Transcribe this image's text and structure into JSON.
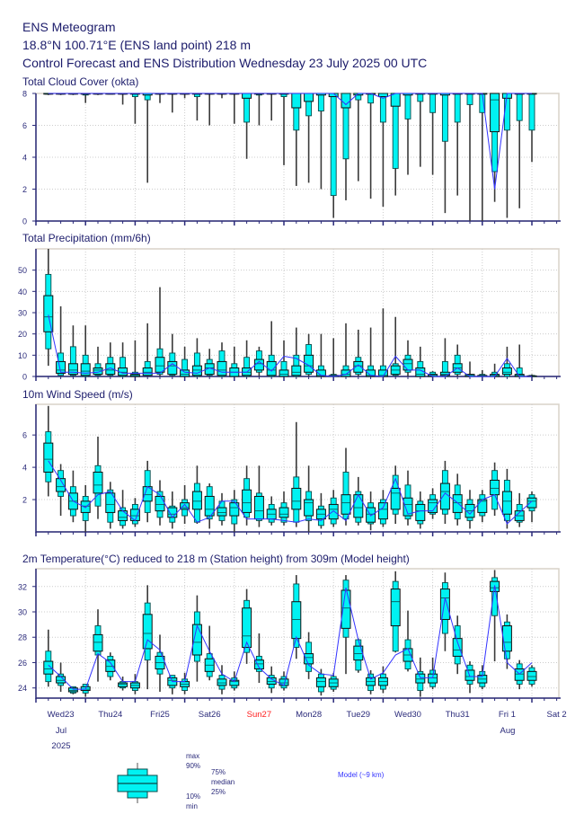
{
  "header": {
    "title": "ENS Meteogram",
    "location": "18.8°N 100.71°E (ENS land point) 218 m",
    "subtitle": "Control Forecast and ENS Distribution Wednesday 23 July 2025 00 UTC"
  },
  "colors": {
    "box_fill": "#00f2f2",
    "box_stroke": "#0a4a4a",
    "whisker": "#3a3a3a",
    "control": "#3333ff",
    "axis": "#2a2a7a",
    "grid": "#cccccc",
    "sunday": "#ff2020"
  },
  "x_axis": {
    "step_hours": 6,
    "first_step": "Wed23 06 UTC",
    "days": [
      {
        "label": "Wed23",
        "sunday": false
      },
      {
        "label": "Thu24",
        "sunday": false
      },
      {
        "label": "Fri25",
        "sunday": false
      },
      {
        "label": "Sat26",
        "sunday": false
      },
      {
        "label": "Sun27",
        "sunday": true
      },
      {
        "label": "Mon28",
        "sunday": false
      },
      {
        "label": "Tue29",
        "sunday": false
      },
      {
        "label": "Wed30",
        "sunday": false
      },
      {
        "label": "Thu31",
        "sunday": false
      },
      {
        "label": "Fri 1",
        "sunday": false
      },
      {
        "label": "Sat 2",
        "sunday": false
      }
    ],
    "month_jul": "Jul",
    "month_aug": "Aug",
    "year": "2025"
  },
  "legend": {
    "max": "max",
    "p90": "90%",
    "p75": "75%",
    "median": "median",
    "p25": "25%",
    "p10": "10%",
    "min": "min",
    "model": "Model (~9 km)"
  },
  "chart_data": [
    {
      "type": "boxplot",
      "title": "Total Cloud Cover (okta)",
      "ylim": [
        0,
        8
      ],
      "yticks": [
        "0",
        "2",
        "4",
        "6",
        "8"
      ],
      "min": [
        7.9,
        7.9,
        7.9,
        7.4,
        7.9,
        8,
        7.3,
        6.1,
        2.4,
        7.4,
        6.8,
        7.7,
        6.3,
        6.0,
        7.7,
        6.1,
        3.9,
        6.0,
        6.3,
        3.5,
        2.2,
        2.4,
        2.0,
        0.2,
        1.3,
        2.5,
        1.4,
        0.9,
        1.6,
        2.9,
        3.4,
        2.9,
        0.5,
        1.6,
        0,
        0,
        1.2,
        0.2,
        0.8,
        3.7
      ],
      "p10": [
        8,
        8,
        8,
        7.9,
        8,
        8,
        8,
        7.8,
        7.6,
        8,
        8,
        8,
        7.8,
        8,
        8,
        8,
        6.2,
        7.9,
        8,
        7.8,
        5.7,
        6.6,
        6.9,
        1.6,
        3.9,
        7.6,
        7.4,
        6.2,
        3.3,
        6.4,
        7.5,
        6.8,
        5.0,
        6.2,
        7.3,
        6.8,
        3.1,
        5.7,
        6.3,
        5.7
      ],
      "p25": [
        8,
        8,
        8,
        8,
        8,
        8,
        8,
        8,
        7.9,
        8,
        8,
        8,
        8,
        8,
        8,
        8,
        7.7,
        8,
        8,
        8,
        7.1,
        7.5,
        7.9,
        7.8,
        7.1,
        7.9,
        8,
        7.8,
        7.2,
        7.9,
        8,
        8,
        7.9,
        8,
        8,
        8,
        5.6,
        7.7,
        8,
        8
      ],
      "median": [
        8,
        8,
        8,
        8,
        8,
        8,
        8,
        8,
        8,
        8,
        8,
        8,
        8,
        8,
        8,
        8,
        8,
        8,
        8,
        8,
        8,
        8,
        8,
        8,
        8,
        8,
        8,
        8,
        8,
        8,
        8,
        8,
        8,
        8,
        8,
        8,
        7.6,
        8,
        8,
        8
      ],
      "p75": [
        8,
        8,
        8,
        8,
        8,
        8,
        8,
        8,
        8,
        8,
        8,
        8,
        8,
        8,
        8,
        8,
        8,
        8,
        8,
        8,
        8,
        8,
        8,
        8,
        8,
        8,
        8,
        8,
        8,
        8,
        8,
        8,
        8,
        8,
        8,
        8,
        8,
        8,
        8,
        8
      ],
      "p90": [
        8,
        8,
        8,
        8,
        8,
        8,
        8,
        8,
        8,
        8,
        8,
        8,
        8,
        8,
        8,
        8,
        8,
        8,
        8,
        8,
        8,
        8,
        8,
        8,
        8,
        8,
        8,
        8,
        8,
        8,
        8,
        8,
        8,
        8,
        8,
        8,
        8,
        8,
        8,
        8
      ],
      "max": [
        8,
        8,
        8,
        8,
        8,
        8,
        8,
        8,
        8,
        8,
        8,
        8,
        8,
        8,
        8,
        8,
        8,
        8,
        8,
        8,
        8,
        8,
        8,
        8,
        8,
        8,
        8,
        8,
        8,
        8,
        8,
        8,
        8,
        8,
        8,
        8,
        8,
        8,
        8,
        8
      ],
      "control": [
        8,
        8,
        8,
        8,
        8,
        8,
        8,
        8,
        8,
        8,
        8,
        8,
        8,
        8,
        8,
        8,
        8,
        8,
        8,
        8,
        8,
        8,
        8,
        8,
        7.3,
        8,
        8,
        7.7,
        8,
        8,
        8,
        8,
        8,
        8,
        8,
        8,
        2.0,
        8,
        8,
        8
      ]
    },
    {
      "type": "boxplot",
      "title": "Total Precipitation (mm/6h)",
      "ylim": [
        0,
        60
      ],
      "yticks": [
        "0",
        "10",
        "20",
        "30",
        "40",
        "50"
      ],
      "min": [
        5,
        0,
        0,
        0,
        0,
        0,
        0,
        0,
        0,
        0,
        0,
        0,
        0,
        0,
        0,
        0,
        0,
        0,
        0,
        0,
        0,
        0,
        0,
        0,
        0,
        0,
        0,
        0,
        0,
        0,
        0,
        0,
        0,
        0,
        0,
        0,
        0,
        0,
        0,
        0
      ],
      "p10": [
        13,
        0.5,
        0.5,
        0,
        0.5,
        0.5,
        0,
        0,
        0.5,
        1,
        0.5,
        0,
        0,
        0.5,
        0,
        0,
        0,
        2,
        0,
        0,
        0,
        1,
        0,
        0,
        0,
        1,
        0,
        0,
        0.5,
        2,
        0,
        0,
        0,
        1,
        0,
        0,
        0,
        0,
        0,
        0
      ],
      "p25": [
        21,
        1.5,
        1,
        0.5,
        1,
        1,
        0.5,
        0,
        0.5,
        2,
        1,
        0,
        0.5,
        1,
        0.5,
        0,
        0.5,
        3,
        0.5,
        0,
        0.5,
        2,
        0,
        0,
        0,
        2,
        0,
        0,
        1,
        3,
        0,
        0,
        0.5,
        2,
        0,
        0,
        0,
        1,
        0,
        0
      ],
      "median": [
        28,
        3,
        3,
        2.5,
        3,
        3,
        2,
        0.5,
        2,
        5,
        5,
        1,
        3,
        4,
        3,
        2,
        2,
        6,
        3,
        1,
        2,
        5,
        0.5,
        0,
        1,
        5,
        0.5,
        0.5,
        3,
        6,
        1,
        0.5,
        1,
        4,
        0.5,
        0,
        0.5,
        2,
        0.5,
        0
      ],
      "p75": [
        38,
        7,
        6,
        6,
        4,
        6,
        4,
        1,
        4,
        9,
        7,
        3,
        5,
        6,
        7,
        4,
        4,
        8,
        7,
        3,
        5,
        10,
        3,
        0.5,
        3,
        7,
        3,
        3,
        5,
        8,
        4,
        1,
        2,
        6,
        1,
        0.5,
        1,
        4,
        1,
        0.3
      ],
      "p90": [
        48,
        11,
        14,
        10,
        6,
        9,
        9,
        2,
        7,
        13,
        11,
        8,
        11,
        8,
        12,
        6,
        9,
        12,
        10,
        7,
        10,
        15,
        5,
        1,
        5,
        9,
        5,
        5,
        6,
        10,
        7,
        2,
        7,
        10,
        1,
        1,
        2,
        6,
        4,
        0.5
      ],
      "max": [
        60,
        33,
        24,
        24,
        14,
        16,
        16,
        17,
        25,
        42,
        20,
        14,
        18,
        13,
        16,
        14,
        17,
        14,
        26,
        17,
        23,
        20,
        20,
        18,
        25,
        22,
        23,
        32,
        28,
        17,
        14,
        2.5,
        18,
        15,
        7,
        3,
        6,
        14,
        15,
        1
      ],
      "control": [
        29,
        2,
        2,
        1.5,
        2,
        4,
        1.5,
        1.5,
        1.5,
        1.5,
        6,
        2,
        1.5,
        4,
        2,
        2,
        2,
        7,
        2.5,
        9.5,
        8.5,
        5.2,
        0.5,
        0,
        1,
        5.5,
        0.5,
        0,
        9.5,
        3,
        3,
        0,
        0,
        4,
        0,
        0,
        0,
        8.5,
        0,
        0
      ]
    },
    {
      "type": "boxplot",
      "title": "10m Wind Speed (m/s)",
      "ylim": [
        0,
        7.9
      ],
      "yticks": [
        "2",
        "4",
        "6"
      ],
      "min": [
        2.2,
        1.0,
        0.6,
        0.0,
        0.8,
        0.2,
        0.2,
        0.3,
        0.6,
        0.4,
        0.2,
        0.5,
        0.5,
        0.2,
        0.4,
        0.0,
        0.4,
        0.3,
        0.4,
        0.4,
        0.3,
        0.0,
        0.2,
        0.3,
        0.4,
        0.4,
        0.1,
        0.3,
        0.5,
        0.4,
        0.2,
        0.8,
        0.5,
        0.4,
        0.2,
        0.6,
        1.0,
        0.2,
        0.3,
        0.6
      ],
      "p10": [
        3.1,
        2.2,
        1.0,
        0.7,
        1.6,
        0.6,
        0.4,
        0.5,
        1.2,
        0.9,
        0.6,
        1.0,
        0.6,
        0.8,
        0.7,
        0.5,
        0.9,
        0.7,
        0.6,
        0.6,
        0.6,
        0.7,
        0.4,
        0.5,
        0.8,
        0.6,
        0.5,
        0.5,
        1.1,
        0.8,
        0.5,
        1.1,
        1.1,
        0.8,
        0.7,
        1.0,
        1.4,
        0.7,
        0.6,
        1.3
      ],
      "p25": [
        3.7,
        2.5,
        1.4,
        1.2,
        2.4,
        1.2,
        0.7,
        0.7,
        1.9,
        1.3,
        0.9,
        1.4,
        1.4,
        1.0,
        1.0,
        1.0,
        1.2,
        0.8,
        0.8,
        0.9,
        1.4,
        1.0,
        0.8,
        0.8,
        1.1,
        0.9,
        0.6,
        0.8,
        1.4,
        1.0,
        0.7,
        1.2,
        1.4,
        1.2,
        0.9,
        1.2,
        2.3,
        1.1,
        0.7,
        1.5
      ],
      "median": [
        4.5,
        2.8,
        1.9,
        1.6,
        2.9,
        1.7,
        0.9,
        1.0,
        2.3,
        1.7,
        1.1,
        1.5,
        1.9,
        1.4,
        1.2,
        1.5,
        1.8,
        1.3,
        1.1,
        1.1,
        1.9,
        1.8,
        1.1,
        1.4,
        1.8,
        1.5,
        1.1,
        1.4,
        2.4,
        1.7,
        1.3,
        1.8,
        2.5,
        1.8,
        1.3,
        1.9,
        2.7,
        1.9,
        1.0,
        1.9
      ],
      "p75": [
        5.5,
        3.3,
        2.4,
        1.9,
        3.7,
        2.4,
        1.3,
        1.4,
        2.8,
        2.2,
        1.5,
        1.8,
        2.5,
        2.2,
        1.5,
        1.8,
        2.6,
        2.2,
        1.4,
        1.5,
        2.7,
        2.0,
        1.4,
        1.7,
        2.3,
        2.3,
        1.5,
        1.8,
        2.7,
        2.1,
        1.7,
        2.0,
        3.0,
        2.3,
        1.7,
        2.0,
        3.2,
        2.5,
        1.3,
        2.1
      ],
      "p90": [
        6.2,
        3.8,
        2.8,
        2.2,
        4.1,
        2.6,
        1.5,
        1.7,
        3.8,
        2.5,
        1.6,
        2.0,
        3.0,
        2.8,
        1.9,
        2.0,
        3.3,
        2.4,
        1.7,
        1.8,
        3.4,
        2.5,
        1.6,
        2.1,
        3.7,
        2.5,
        1.8,
        2.0,
        3.5,
        2.9,
        1.9,
        2.3,
        3.8,
        2.9,
        2.0,
        2.3,
        3.8,
        3.2,
        1.7,
        2.3
      ],
      "max": [
        7.8,
        4.2,
        3.8,
        2.9,
        5.9,
        3.1,
        2.6,
        2.1,
        4.4,
        3.2,
        2.5,
        2.9,
        4.1,
        3.0,
        2.4,
        2.6,
        4.1,
        4.1,
        2.2,
        2.5,
        6.8,
        4.1,
        2.4,
        2.6,
        5.2,
        3.4,
        2.5,
        2.6,
        4.1,
        3.8,
        2.5,
        2.7,
        4.4,
        3.6,
        2.6,
        2.6,
        4.3,
        3.9,
        2.4,
        2.5
      ],
      "control": [
        4.4,
        3.2,
        1.9,
        1.5,
        2.3,
        2.5,
        1.3,
        0.7,
        2.8,
        2.3,
        0.9,
        1.7,
        0.6,
        0.9,
        1.9,
        1.9,
        0.8,
        0.8,
        0.8,
        0.7,
        0.6,
        0.8,
        0.7,
        1.3,
        0.7,
        2.3,
        1.0,
        1.5,
        3.3,
        1.1,
        1.3,
        1.3,
        2.4,
        1.8,
        1.1,
        2.0,
        2.3,
        0.5,
        1.2,
        1.9
      ]
    },
    {
      "type": "boxplot",
      "title": "2m Temperature(°C) reduced to 218 m (Station height) from 309m (Model height)",
      "ylim": [
        23.2,
        33.4
      ],
      "yticks": [
        "24",
        "26",
        "28",
        "30",
        "32"
      ],
      "min": [
        24.1,
        23.7,
        23.5,
        23.3,
        24.5,
        24.6,
        23.8,
        23.5,
        23.9,
        23.7,
        23.5,
        23.5,
        24.5,
        24.6,
        23.5,
        23.8,
        25.9,
        24.4,
        23.6,
        23.8,
        26.3,
        24.7,
        23.4,
        23.7,
        25.1,
        25.2,
        23.5,
        23.6,
        26.8,
        25.3,
        23.3,
        23.9,
        26.9,
        25.1,
        23.6,
        23.9,
        26.1,
        25.5,
        23.9,
        24.1
      ],
      "p10": [
        24.5,
        24.2,
        23.6,
        23.6,
        26.6,
        24.9,
        24.0,
        23.8,
        26.2,
        25.1,
        24.0,
        23.8,
        26.1,
        24.9,
        23.9,
        24.0,
        26.8,
        25.3,
        24.0,
        24.0,
        27.2,
        25.3,
        23.7,
        23.9,
        28.0,
        25.4,
        23.8,
        23.9,
        26.9,
        25.5,
        23.8,
        24.1,
        28.3,
        25.9,
        24.3,
        24.1,
        29.7,
        26.3,
        24.3,
        24.3
      ],
      "p25": [
        25.1,
        24.4,
        23.7,
        23.8,
        26.9,
        25.3,
        24.1,
        24.0,
        27.1,
        25.5,
        24.2,
        24.1,
        26.6,
        25.3,
        24.2,
        24.2,
        27.2,
        25.5,
        24.3,
        24.2,
        27.9,
        25.9,
        24.1,
        24.1,
        28.7,
        26.2,
        24.2,
        24.2,
        28.9,
        26.1,
        24.4,
        24.4,
        29.4,
        26.5,
        24.6,
        24.4,
        31.6,
        26.9,
        24.6,
        24.6
      ],
      "median": [
        25.5,
        24.6,
        23.8,
        23.9,
        27.6,
        25.7,
        24.3,
        24.2,
        28.3,
        26.0,
        24.6,
        24.3,
        27.6,
        25.8,
        24.4,
        24.5,
        28.1,
        25.9,
        24.5,
        24.4,
        29.4,
        26.4,
        24.5,
        24.4,
        30.3,
        26.7,
        24.5,
        24.5,
        30.8,
        26.6,
        24.7,
        24.8,
        31.1,
        27.0,
        24.9,
        24.7,
        31.9,
        27.6,
        25.1,
        24.9
      ],
      "p75": [
        26.1,
        24.9,
        24.0,
        24.1,
        28.2,
        26.2,
        24.4,
        24.4,
        29.8,
        26.5,
        24.8,
        24.5,
        29.0,
        26.3,
        24.7,
        24.6,
        30.3,
        26.2,
        24.8,
        24.7,
        30.8,
        26.7,
        24.8,
        24.7,
        31.7,
        27.3,
        24.8,
        24.8,
        31.8,
        27.1,
        25.1,
        25.1,
        31.8,
        27.9,
        25.4,
        25.0,
        32.4,
        28.9,
        25.5,
        25.3
      ],
      "p90": [
        26.9,
        25.1,
        24.1,
        24.3,
        28.9,
        26.5,
        24.5,
        24.5,
        30.7,
        26.8,
        25.0,
        24.7,
        30.0,
        26.7,
        25.0,
        24.8,
        30.9,
        26.5,
        25.0,
        24.9,
        32.2,
        27.6,
        25.1,
        24.9,
        32.5,
        27.8,
        25.1,
        25.1,
        32.4,
        27.8,
        25.3,
        25.4,
        32.3,
        28.9,
        25.8,
        25.3,
        32.7,
        29.2,
        25.9,
        25.6
      ],
      "max": [
        28.6,
        26.0,
        24.1,
        24.3,
        30.2,
        26.8,
        24.9,
        25.1,
        32.1,
        28.2,
        25.0,
        25.2,
        31.3,
        28.9,
        25.8,
        25.3,
        31.8,
        28.3,
        25.7,
        25.3,
        32.9,
        28.4,
        25.5,
        25.2,
        32.9,
        27.9,
        25.4,
        25.7,
        33.2,
        30.1,
        26.4,
        26.4,
        33.1,
        29.7,
        26.1,
        25.8,
        33.3,
        29.8,
        26.2,
        25.8
      ],
      "control": [
        25.8,
        24.9,
        23.9,
        23.9,
        26.7,
        26.0,
        24.5,
        24.5,
        27.8,
        27.0,
        24.5,
        24.5,
        28.9,
        26.9,
        25.1,
        24.5,
        27.6,
        25.6,
        24.7,
        24.2,
        28.0,
        25.8,
        25.1,
        25.0,
        31.9,
        27.8,
        24.7,
        25.2,
        26.6,
        27.1,
        24.8,
        24.8,
        31.1,
        27.6,
        24.9,
        24.9,
        32.1,
        26.0,
        25.1,
        26.0
      ]
    }
  ]
}
